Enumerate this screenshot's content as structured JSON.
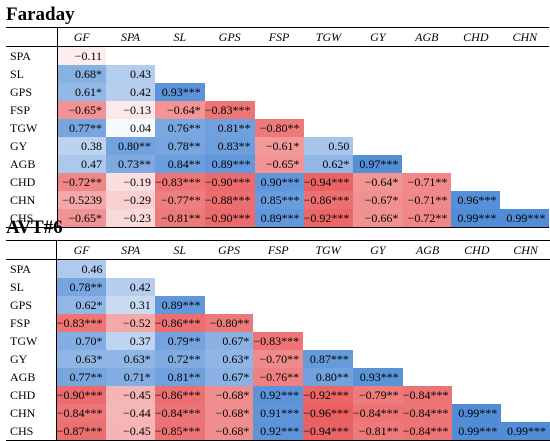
{
  "colors": {
    "positive": "#4f8bd6",
    "negative": "#e9595a",
    "neutral": "#ffffff"
  },
  "tables": [
    {
      "title": "Faraday",
      "columns": [
        "GF",
        "SPA",
        "SL",
        "GPS",
        "FSP",
        "TGW",
        "GY",
        "AGB",
        "CHD",
        "CHN"
      ],
      "rows": [
        {
          "label": "SPA",
          "cells": [
            "−0.11"
          ]
        },
        {
          "label": "SL",
          "cells": [
            "0.68*",
            "0.43"
          ]
        },
        {
          "label": "GPS",
          "cells": [
            "0.61*",
            "0.42",
            "0.93***"
          ]
        },
        {
          "label": "FSP",
          "cells": [
            "−0.65*",
            "−0.13",
            "−0.64*",
            "−0.83***"
          ]
        },
        {
          "label": "TGW",
          "cells": [
            "0.77**",
            "0.04",
            "0.76**",
            "0.81**",
            "−0.80**"
          ]
        },
        {
          "label": "GY",
          "cells": [
            "0.38",
            "0.80**",
            "0.78**",
            "0.83**",
            "−0.61*",
            "0.50"
          ]
        },
        {
          "label": "AGB",
          "cells": [
            "0.47",
            "0.73**",
            "0.84**",
            "0.89***",
            "−0.65*",
            "0.62*",
            "0.97***"
          ]
        },
        {
          "label": "CHD",
          "cells": [
            "−0.72**",
            "−0.19",
            "−0.83***",
            "−0.90***",
            "0.90***",
            "−0.94***",
            "−0.64*",
            "−0.71**"
          ]
        },
        {
          "label": "CHN",
          "cells": [
            "−0.5239",
            "−0.29",
            "−0.77**",
            "−0.88***",
            "0.85***",
            "−0.86***",
            "−0.67*",
            "−0.71**",
            "0.96***"
          ]
        },
        {
          "label": "CHS",
          "cells": [
            "−0.65*",
            "−0.23",
            "−0.81**",
            "−0.90***",
            "0.89***",
            "−0.92***",
            "−0.66*",
            "−0.72**",
            "0.99***",
            "0.99***"
          ]
        }
      ]
    },
    {
      "title": "AVT#6",
      "columns": [
        "GF",
        "SPA",
        "SL",
        "GPS",
        "FSP",
        "TGW",
        "GY",
        "AGB",
        "CHD",
        "CHN"
      ],
      "rows": [
        {
          "label": "SPA",
          "cells": [
            "0.46"
          ]
        },
        {
          "label": "SL",
          "cells": [
            "0.78**",
            "0.42"
          ]
        },
        {
          "label": "GPS",
          "cells": [
            "0.62*",
            "0.31",
            "0.89***"
          ]
        },
        {
          "label": "FSP",
          "cells": [
            "−0.83***",
            "−0.52",
            "−0.86***",
            "−0.80**"
          ]
        },
        {
          "label": "TGW",
          "cells": [
            "0.70*",
            "0.37",
            "0.79**",
            "0.67*",
            "−0.83***"
          ]
        },
        {
          "label": "GY",
          "cells": [
            "0.63*",
            "0.63*",
            "0.72**",
            "0.63*",
            "−0.70**",
            "0.87***"
          ]
        },
        {
          "label": "AGB",
          "cells": [
            "0.77**",
            "0.71*",
            "0.81**",
            "0.67*",
            "−0.76**",
            "0.80**",
            "0.93***"
          ]
        },
        {
          "label": "CHD",
          "cells": [
            "−0.90***",
            "−0.45",
            "−0.86***",
            "−0.68*",
            "0.92***",
            "−0.92***",
            "−0.79**",
            "−0.84***"
          ]
        },
        {
          "label": "CHN",
          "cells": [
            "−0.84***",
            "−0.44",
            "−0.84***",
            "−0.68*",
            "0.91***",
            "−0.96***",
            "−0.84***",
            "−0.84***",
            "0.99***"
          ]
        },
        {
          "label": "CHS",
          "cells": [
            "−0.87***",
            "−0.45",
            "−0.85***",
            "−0.68*",
            "0.92***",
            "−0.94***",
            "−0.81**",
            "−0.84***",
            "0.99***",
            "0.99***"
          ]
        }
      ]
    }
  ]
}
